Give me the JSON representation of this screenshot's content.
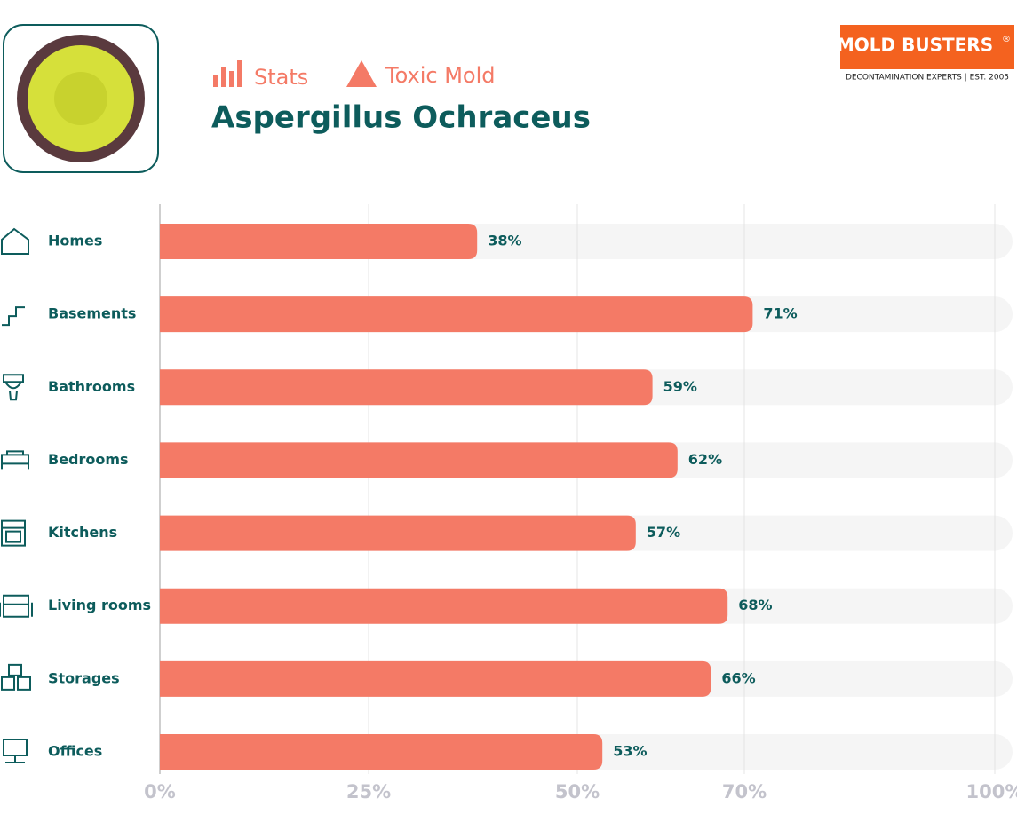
{
  "chart_data": {
    "type": "hbar",
    "title": "Aspergillus Ochraceus",
    "tags": [
      "Stats",
      "Toxic Mold"
    ],
    "logo": {
      "name": "MOLD BUSTERS",
      "mark": "®",
      "tagline": "DECONTAMINATION EXPERTS | EST. 2005"
    },
    "categories": [
      "Homes",
      "Basements",
      "Bathrooms",
      "Bedrooms",
      "Kitchens",
      "Living rooms",
      "Storages",
      "Offices"
    ],
    "values": [
      38,
      71,
      59,
      62,
      57,
      68,
      66,
      53
    ],
    "value_labels": [
      "38%",
      "71%",
      "59%",
      "62%",
      "57%",
      "68%",
      "66%",
      "53%"
    ],
    "color": "#f47a66",
    "xlim": [
      0,
      100
    ],
    "xticks": [
      {
        "value": 0,
        "label": "0%"
      },
      {
        "value": 25,
        "label": "25%"
      },
      {
        "value": 50,
        "label": "50%"
      },
      {
        "value": 70,
        "label": "70%"
      },
      {
        "value": 100,
        "label": "100%"
      }
    ],
    "grid": true
  }
}
